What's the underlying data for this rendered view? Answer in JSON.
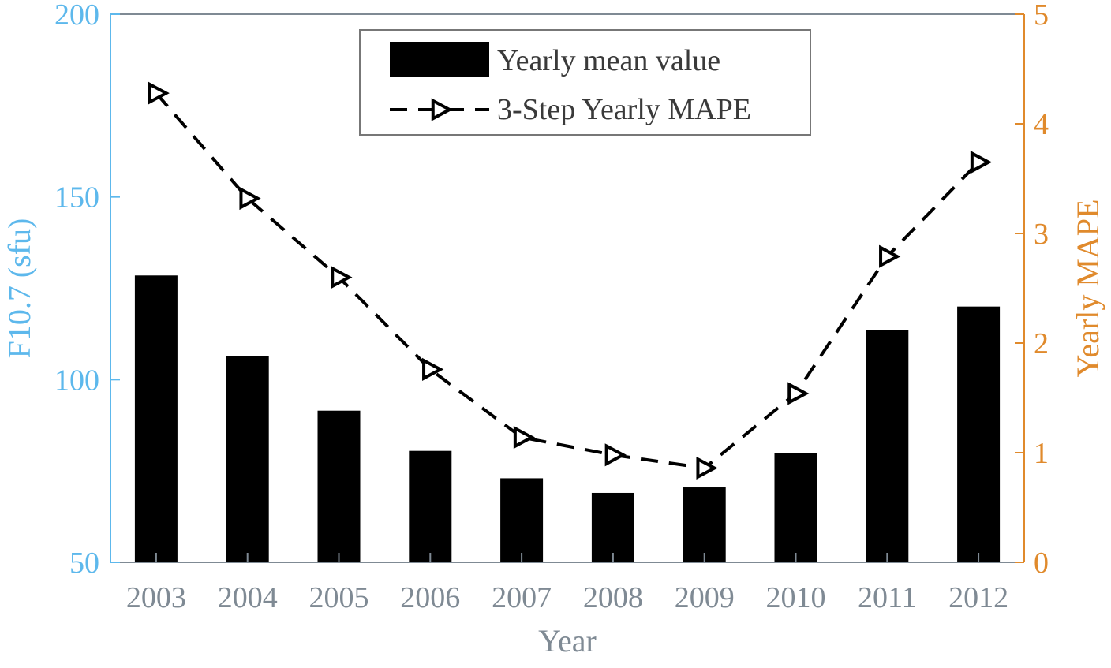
{
  "chart_data": {
    "type": "bar",
    "categories": [
      "2003",
      "2004",
      "2005",
      "2006",
      "2007",
      "2008",
      "2009",
      "2010",
      "2011",
      "2012"
    ],
    "series": [
      {
        "name": "Yearly mean value",
        "type": "bar",
        "axis": "left",
        "values": [
          128.5,
          106.5,
          91.5,
          80.5,
          73,
          69,
          70.5,
          80,
          113.5,
          120
        ]
      },
      {
        "name": "3-Step Yearly MAPE",
        "type": "line",
        "axis": "right",
        "line_style": "dashed",
        "marker": "triangle-right",
        "values": [
          4.28,
          3.32,
          2.6,
          1.76,
          1.14,
          0.98,
          0.86,
          1.54,
          2.79,
          3.65
        ]
      }
    ],
    "xlabel": "Year",
    "ylabel": "F10.7 (sfu)",
    "y2label": "Yearly MAPE",
    "ylim": [
      50,
      200
    ],
    "y2lim": [
      0,
      5
    ],
    "yticks": [
      "50",
      "100",
      "150",
      "200"
    ],
    "y2ticks": [
      "0",
      "1",
      "2",
      "3",
      "4",
      "5"
    ],
    "grid": false,
    "legend_placement": "top-center"
  },
  "colors": {
    "left_axis": "#5db8ec",
    "right_axis": "#e08a2c",
    "x_axis_text": "#7f8a94",
    "bars": "#000000",
    "line": "#000000"
  }
}
